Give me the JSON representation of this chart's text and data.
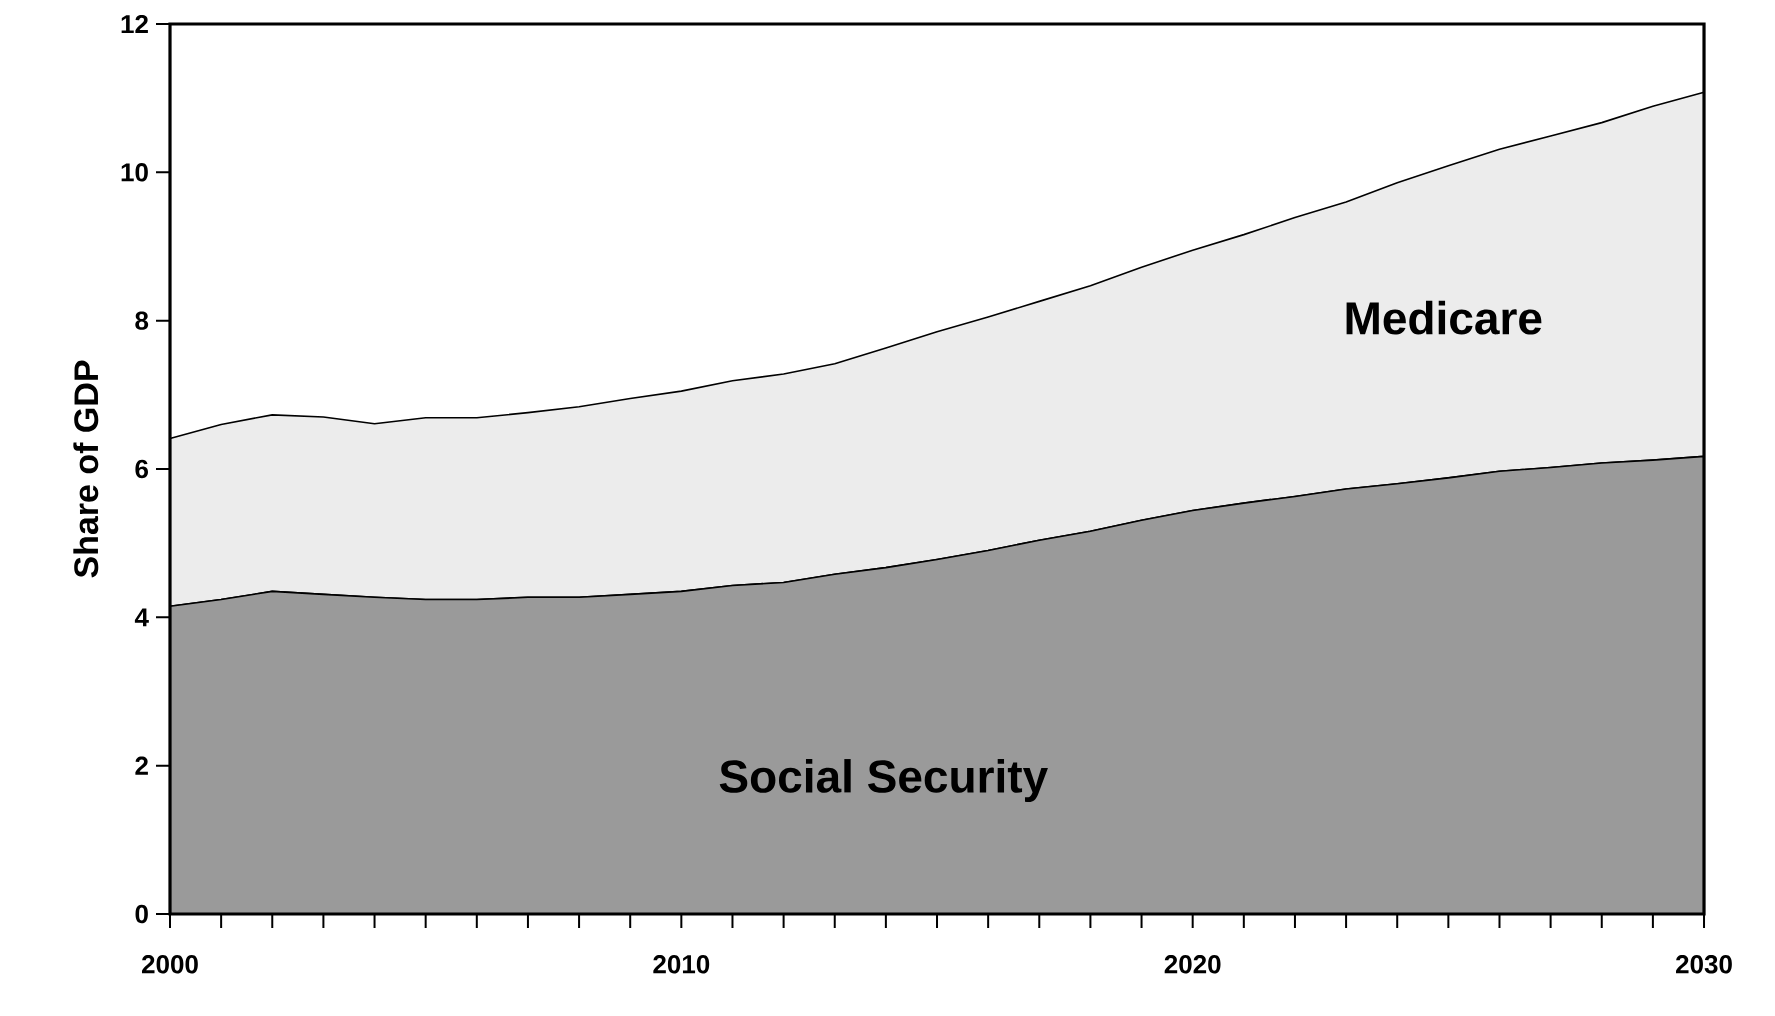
{
  "chart_data": {
    "type": "area",
    "stacked": true,
    "ylabel": "Share of GDP",
    "x": [
      2000,
      2001,
      2002,
      2003,
      2004,
      2005,
      2006,
      2007,
      2008,
      2009,
      2010,
      2011,
      2012,
      2013,
      2014,
      2015,
      2016,
      2017,
      2018,
      2019,
      2020,
      2021,
      2022,
      2023,
      2024,
      2025,
      2026,
      2027,
      2028,
      2029,
      2030
    ],
    "series": [
      {
        "name": "Social Security",
        "color": "#9a9a9a",
        "values": [
          4.15,
          4.24,
          4.35,
          4.31,
          4.27,
          4.24,
          4.24,
          4.27,
          4.27,
          4.31,
          4.35,
          4.43,
          4.47,
          4.58,
          4.67,
          4.78,
          4.9,
          5.04,
          5.16,
          5.31,
          5.44,
          5.54,
          5.63,
          5.73,
          5.8,
          5.88,
          5.97,
          6.02,
          6.08,
          6.12,
          6.17
        ]
      },
      {
        "name": "Medicare",
        "color": "#ececec",
        "values": [
          2.26,
          2.36,
          2.38,
          2.39,
          2.34,
          2.45,
          2.45,
          2.49,
          2.57,
          2.64,
          2.7,
          2.76,
          2.81,
          2.84,
          2.96,
          3.07,
          3.15,
          3.22,
          3.31,
          3.41,
          3.51,
          3.62,
          3.76,
          3.87,
          4.06,
          4.21,
          4.34,
          4.47,
          4.59,
          4.77,
          4.91
        ]
      }
    ],
    "xlim": [
      2000,
      2030
    ],
    "xticks": [
      2000,
      2010,
      2020,
      2030
    ],
    "ylim": [
      0,
      12
    ],
    "yticks": [
      0,
      2,
      4,
      6,
      8,
      10,
      12
    ],
    "grid": false,
    "legend": false
  }
}
